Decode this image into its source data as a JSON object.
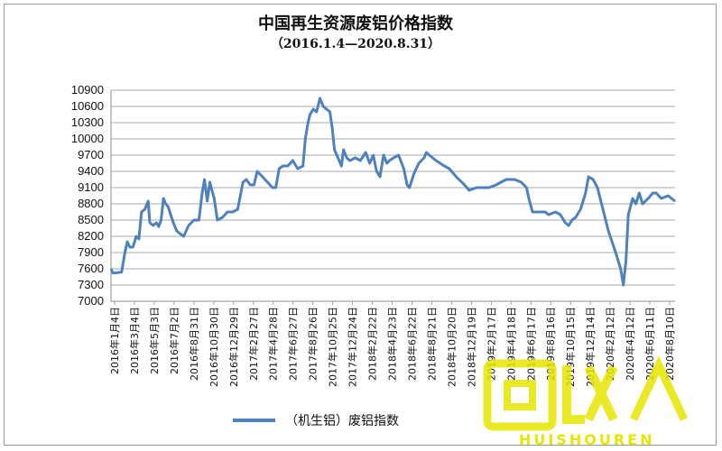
{
  "chart_data": {
    "type": "line",
    "title": "中国再生资源废铝价格指数",
    "subtitle": "（2016.1.4—2020.8.31）",
    "ylim": [
      7000,
      10900
    ],
    "yticks": [
      7000,
      7300,
      7600,
      7900,
      8200,
      8500,
      8800,
      9100,
      9400,
      9700,
      10000,
      10300,
      10600,
      10900
    ],
    "grid": "horizontal",
    "legend_position": "bottom",
    "line_color": "#4f81bd",
    "x_tick_labels": [
      "2016年1月4日",
      "2016年3月4日",
      "2016年5月3日",
      "2016年7月2日",
      "2016年8月31日",
      "2016年10月30日",
      "2016年12月29日",
      "2017年2月27日",
      "2017年4月28日",
      "2017年6月27日",
      "2017年8月26日",
      "2017年10月25日",
      "2017年12月24日",
      "2018年2月22日",
      "2018年4月23日",
      "2018年6月22日",
      "2018年8月21日",
      "2018年10月20日",
      "2018年12月19日",
      "2019年2月17日",
      "2019年4月18日",
      "2019年6月17日",
      "2019年8月16日",
      "2019年10月15日",
      "2019年12月14日",
      "2020年2月12日",
      "2020年4月12日",
      "2020年6月11日",
      "2020年8月10日"
    ],
    "series": [
      {
        "name": "（机生铝）废铝指数",
        "points": [
          [
            "2016-01-04",
            7600
          ],
          [
            "2016-01-10",
            7520
          ],
          [
            "2016-01-25",
            7530
          ],
          [
            "2016-02-05",
            7540
          ],
          [
            "2016-02-15",
            7900
          ],
          [
            "2016-02-22",
            8100
          ],
          [
            "2016-03-01",
            8000
          ],
          [
            "2016-03-10",
            8000
          ],
          [
            "2016-03-20",
            8200
          ],
          [
            "2016-03-28",
            8150
          ],
          [
            "2016-04-05",
            8650
          ],
          [
            "2016-04-15",
            8700
          ],
          [
            "2016-04-25",
            8850
          ],
          [
            "2016-04-30",
            8450
          ],
          [
            "2016-05-10",
            8400
          ],
          [
            "2016-05-20",
            8450
          ],
          [
            "2016-05-27",
            8380
          ],
          [
            "2016-06-03",
            8500
          ],
          [
            "2016-06-10",
            8900
          ],
          [
            "2016-06-17",
            8800
          ],
          [
            "2016-06-24",
            8750
          ],
          [
            "2016-07-02",
            8600
          ],
          [
            "2016-07-10",
            8450
          ],
          [
            "2016-07-20",
            8300
          ],
          [
            "2016-07-30",
            8250
          ],
          [
            "2016-08-10",
            8200
          ],
          [
            "2016-08-25",
            8400
          ],
          [
            "2016-09-10",
            8500
          ],
          [
            "2016-09-25",
            8500
          ],
          [
            "2016-10-05",
            9000
          ],
          [
            "2016-10-12",
            9250
          ],
          [
            "2016-10-20",
            8850
          ],
          [
            "2016-10-28",
            9200
          ],
          [
            "2016-11-10",
            8900
          ],
          [
            "2016-11-20",
            8500
          ],
          [
            "2016-12-05",
            8550
          ],
          [
            "2016-12-20",
            8650
          ],
          [
            "2017-01-05",
            8650
          ],
          [
            "2017-01-20",
            8700
          ],
          [
            "2017-02-05",
            9200
          ],
          [
            "2017-02-15",
            9250
          ],
          [
            "2017-02-27",
            9150
          ],
          [
            "2017-03-10",
            9150
          ],
          [
            "2017-03-20",
            9400
          ],
          [
            "2017-04-05",
            9300
          ],
          [
            "2017-04-20",
            9200
          ],
          [
            "2017-05-05",
            9100
          ],
          [
            "2017-05-15",
            9100
          ],
          [
            "2017-05-25",
            9450
          ],
          [
            "2017-06-05",
            9500
          ],
          [
            "2017-06-20",
            9500
          ],
          [
            "2017-07-05",
            9600
          ],
          [
            "2017-07-20",
            9450
          ],
          [
            "2017-08-05",
            9500
          ],
          [
            "2017-08-12",
            10000
          ],
          [
            "2017-08-20",
            10300
          ],
          [
            "2017-08-26",
            10450
          ],
          [
            "2017-09-05",
            10550
          ],
          [
            "2017-09-15",
            10500
          ],
          [
            "2017-09-25",
            10750
          ],
          [
            "2017-10-05",
            10600
          ],
          [
            "2017-10-15",
            10550
          ],
          [
            "2017-10-25",
            10500
          ],
          [
            "2017-11-01",
            10200
          ],
          [
            "2017-11-08",
            9800
          ],
          [
            "2017-11-15",
            9700
          ],
          [
            "2017-11-22",
            9600
          ],
          [
            "2017-11-29",
            9500
          ],
          [
            "2017-12-05",
            9800
          ],
          [
            "2017-12-15",
            9650
          ],
          [
            "2017-12-24",
            9600
          ],
          [
            "2018-01-10",
            9650
          ],
          [
            "2018-01-25",
            9600
          ],
          [
            "2018-02-10",
            9750
          ],
          [
            "2018-02-22",
            9550
          ],
          [
            "2018-03-05",
            9700
          ],
          [
            "2018-03-15",
            9400
          ],
          [
            "2018-03-25",
            9300
          ],
          [
            "2018-04-05",
            9700
          ],
          [
            "2018-04-15",
            9550
          ],
          [
            "2018-04-23",
            9600
          ],
          [
            "2018-05-05",
            9650
          ],
          [
            "2018-05-20",
            9700
          ],
          [
            "2018-06-05",
            9450
          ],
          [
            "2018-06-15",
            9150
          ],
          [
            "2018-06-22",
            9100
          ],
          [
            "2018-07-05",
            9350
          ],
          [
            "2018-07-20",
            9550
          ],
          [
            "2018-08-05",
            9650
          ],
          [
            "2018-08-12",
            9750
          ],
          [
            "2018-08-21",
            9700
          ],
          [
            "2018-09-10",
            9600
          ],
          [
            "2018-10-05",
            9500
          ],
          [
            "2018-10-20",
            9450
          ],
          [
            "2018-11-10",
            9300
          ],
          [
            "2018-12-05",
            9150
          ],
          [
            "2018-12-19",
            9050
          ],
          [
            "2019-01-10",
            9100
          ],
          [
            "2019-02-01",
            9100
          ],
          [
            "2019-02-17",
            9100
          ],
          [
            "2019-03-10",
            9150
          ],
          [
            "2019-03-25",
            9200
          ],
          [
            "2019-04-10",
            9250
          ],
          [
            "2019-04-18",
            9250
          ],
          [
            "2019-05-05",
            9250
          ],
          [
            "2019-05-25",
            9200
          ],
          [
            "2019-06-10",
            9100
          ],
          [
            "2019-06-17",
            8900
          ],
          [
            "2019-06-28",
            8650
          ],
          [
            "2019-07-15",
            8650
          ],
          [
            "2019-08-05",
            8650
          ],
          [
            "2019-08-16",
            8600
          ],
          [
            "2019-09-05",
            8650
          ],
          [
            "2019-09-20",
            8600
          ],
          [
            "2019-10-05",
            8450
          ],
          [
            "2019-10-15",
            8400
          ],
          [
            "2019-10-25",
            8500
          ],
          [
            "2019-11-05",
            8550
          ],
          [
            "2019-11-20",
            8700
          ],
          [
            "2019-12-05",
            9000
          ],
          [
            "2019-12-14",
            9300
          ],
          [
            "2019-12-28",
            9250
          ],
          [
            "2020-01-10",
            9100
          ],
          [
            "2020-02-12",
            8300
          ],
          [
            "2020-03-05",
            7900
          ],
          [
            "2020-03-20",
            7600
          ],
          [
            "2020-03-28",
            7300
          ],
          [
            "2020-04-05",
            7750
          ],
          [
            "2020-04-12",
            8600
          ],
          [
            "2020-04-25",
            8900
          ],
          [
            "2020-05-05",
            8800
          ],
          [
            "2020-05-15",
            9000
          ],
          [
            "2020-05-25",
            8800
          ],
          [
            "2020-06-11",
            8900
          ],
          [
            "2020-06-25",
            9000
          ],
          [
            "2020-07-05",
            9000
          ],
          [
            "2020-07-20",
            8900
          ],
          [
            "2020-08-10",
            8950
          ],
          [
            "2020-08-31",
            8850
          ]
        ]
      }
    ]
  },
  "watermark": {
    "logo_text": "回收",
    "brand_text": "HUISHOUREN"
  }
}
